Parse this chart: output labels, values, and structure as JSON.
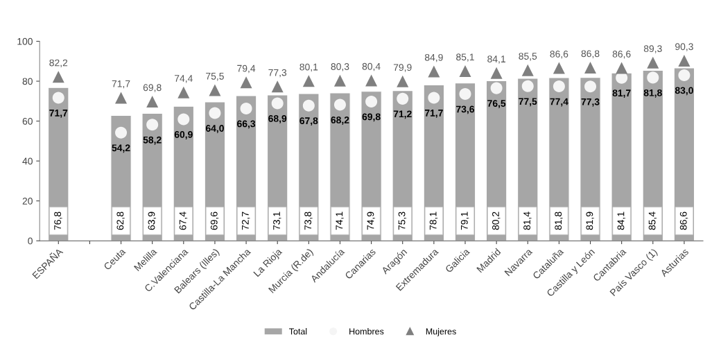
{
  "chart_data": {
    "type": "bar",
    "categories": [
      "ESPAÑA",
      null,
      "Ceuta",
      "Melilla",
      "C.Valenciana",
      "Balears (Illes)",
      "Castilla-La Mancha",
      "La Rioja",
      "Murcia (R.de)",
      "Andalucía",
      "Canarias",
      "Aragón",
      "Extremadura",
      "Galicia",
      "Madrid",
      "Navarra",
      "Cataluña",
      "Castilla y León",
      "Cantabria",
      "País Vasco (1)",
      "Asturias"
    ],
    "series": [
      {
        "name": "Total",
        "color": "#a6a6a6",
        "values": [
          76.8,
          null,
          62.8,
          63.9,
          67.4,
          69.6,
          72.7,
          73.1,
          73.8,
          74.1,
          74.9,
          75.3,
          78.1,
          79.1,
          80.2,
          81.4,
          81.8,
          81.9,
          84.1,
          85.4,
          86.6
        ],
        "value_labels": [
          "76,8",
          null,
          "62,8",
          "63,9",
          "67,4",
          "69,6",
          "72,7",
          "73,1",
          "73,8",
          "74,1",
          "74,9",
          "75,3",
          "78,1",
          "79,1",
          "80,2",
          "81,4",
          "81,8",
          "81,9",
          "84,1",
          "85,4",
          "86,6"
        ]
      },
      {
        "name": "Hombres",
        "type": "scatter",
        "marker": "circle",
        "color": "#f5f5f5",
        "values": [
          71.7,
          null,
          54.2,
          58.2,
          60.9,
          64.0,
          66.3,
          68.9,
          67.8,
          68.2,
          69.8,
          71.2,
          71.7,
          73.6,
          76.5,
          77.5,
          77.4,
          77.3,
          81.7,
          81.8,
          83.0
        ],
        "value_labels": [
          "71,7",
          null,
          "54,2",
          "58,2",
          "60,9",
          "64,0",
          "66,3",
          "68,9",
          "67,8",
          "68,2",
          "69,8",
          "71,2",
          "71,7",
          "73,6",
          "76,5",
          "77,5",
          "77,4",
          "77,3",
          "81,7",
          "81,8",
          "83,0"
        ]
      },
      {
        "name": "Mujeres",
        "type": "scatter",
        "marker": "triangle",
        "color": "#7f7f7f",
        "values": [
          82.2,
          null,
          71.7,
          69.8,
          74.4,
          75.5,
          79.4,
          77.3,
          80.1,
          80.3,
          80.4,
          79.9,
          84.9,
          85.1,
          84.1,
          85.5,
          86.6,
          86.8,
          86.6,
          89.3,
          90.3
        ],
        "value_labels": [
          "82,2",
          null,
          "71,7",
          "69,8",
          "74,4",
          "75,5",
          "79,4",
          "77,3",
          "80,1",
          "80,3",
          "80,4",
          "79,9",
          "84,9",
          "85,1",
          "84,1",
          "85,5",
          "86,6",
          "86,8",
          "86,6",
          "89,3",
          "90,3"
        ]
      }
    ],
    "ylim": [
      0,
      100
    ],
    "yticks": [
      0,
      20,
      40,
      60,
      80,
      100
    ],
    "grid": false,
    "legend": "bottom"
  }
}
